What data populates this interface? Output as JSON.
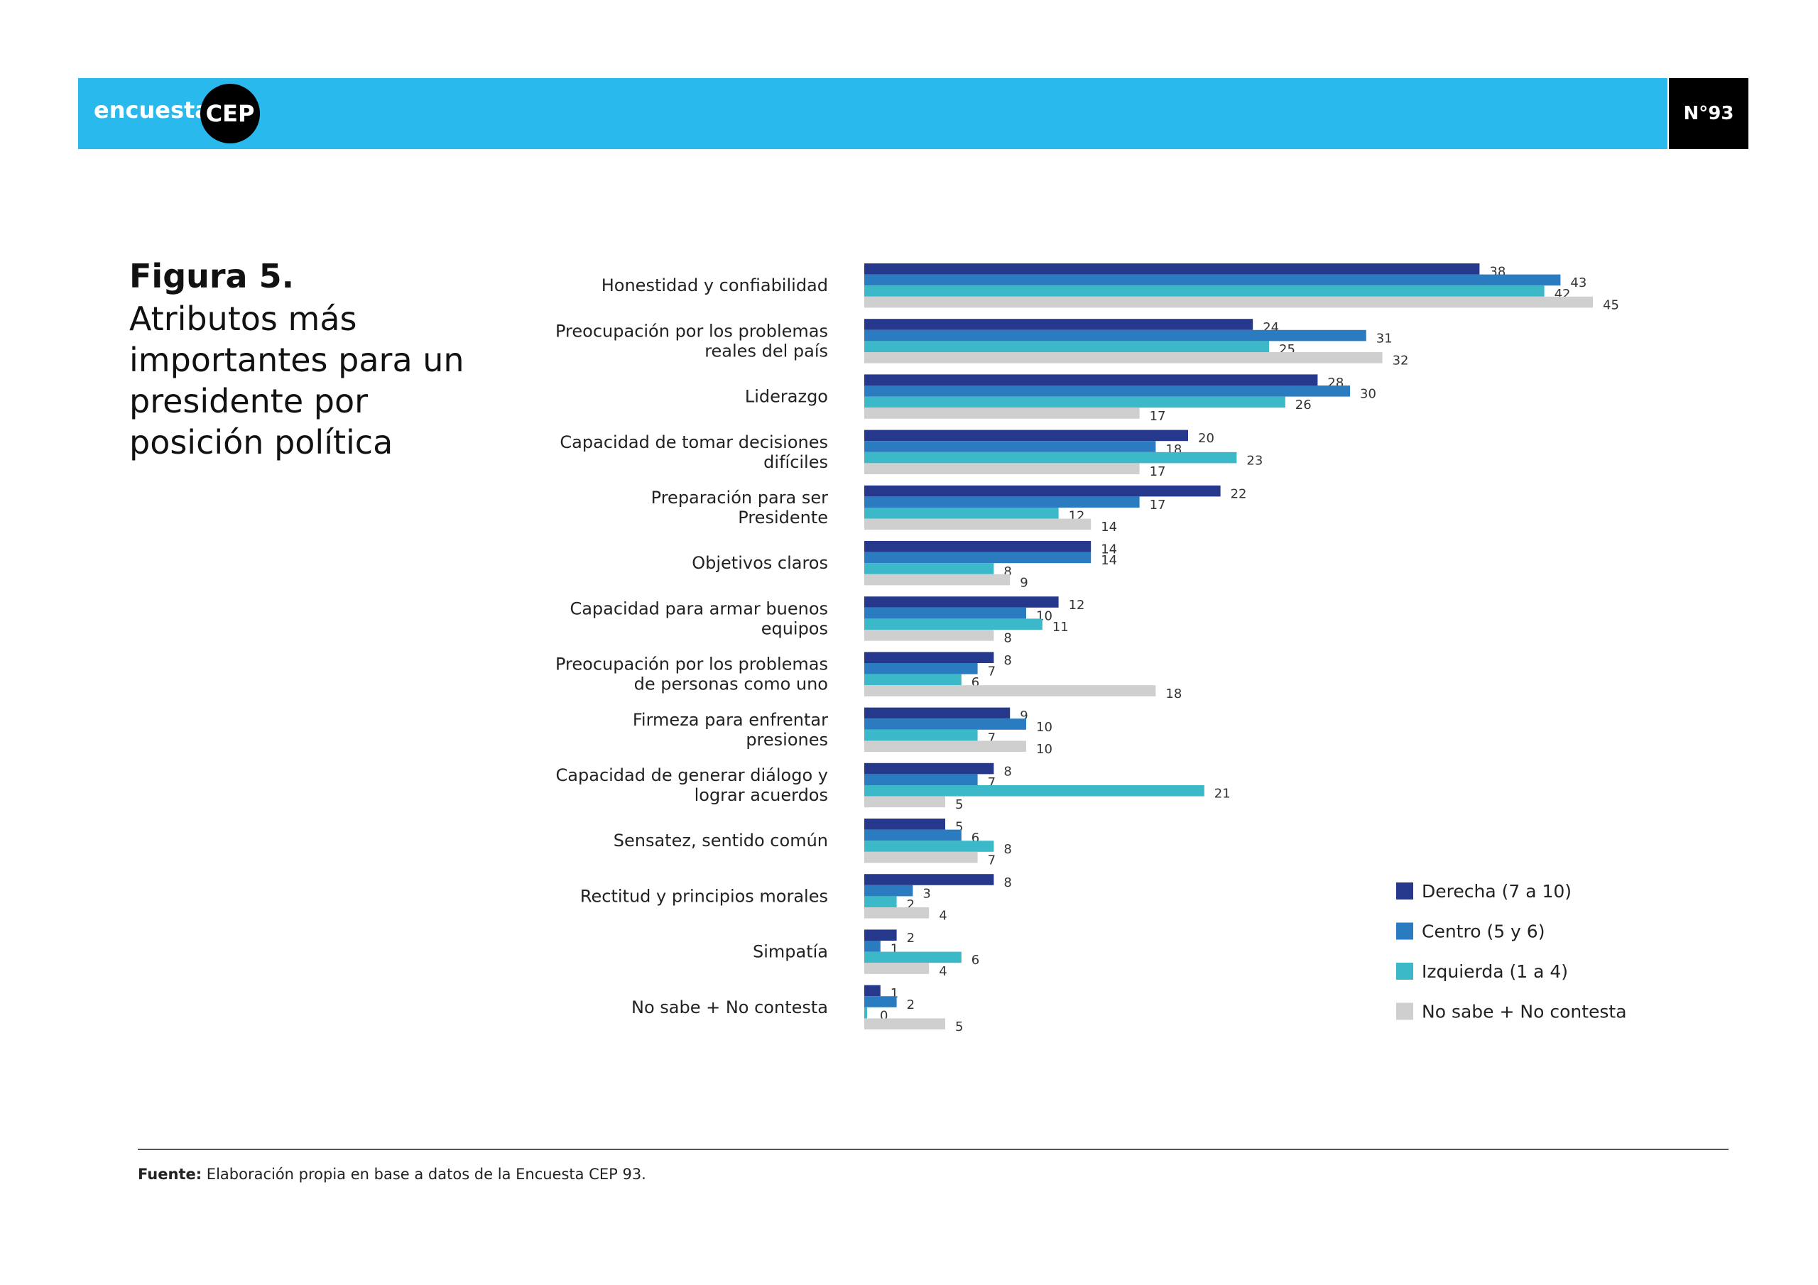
{
  "header": {
    "brand_text": "encuesta",
    "brand_badge": "CEP",
    "issue": "N°93",
    "banner_color": "#29b9ec"
  },
  "figure": {
    "title": "Figura 5.",
    "subtitle": "Atributos más importantes para un presidente por posición política"
  },
  "chart_data": {
    "type": "bar",
    "orientation": "horizontal",
    "categories": [
      [
        "Honestidad y confiabilidad"
      ],
      [
        "Preocupación por los problemas",
        "reales del país"
      ],
      [
        "Liderazgo"
      ],
      [
        "Capacidad de tomar decisiones",
        "difíciles"
      ],
      [
        "Preparación para ser",
        "Presidente"
      ],
      [
        "Objetivos claros"
      ],
      [
        "Capacidad para armar buenos",
        "equipos"
      ],
      [
        "Preocupación por los problemas",
        "de personas como uno"
      ],
      [
        "Firmeza para enfrentar",
        "presiones"
      ],
      [
        "Capacidad de generar diálogo y",
        "lograr acuerdos"
      ],
      [
        "Sensatez, sentido común"
      ],
      [
        "Rectitud y principios morales"
      ],
      [
        "Simpatía"
      ],
      [
        "No sabe + No contesta"
      ]
    ],
    "series": [
      {
        "name": "Derecha (7 a 10)",
        "color": "#26388c",
        "values": [
          38,
          24,
          28,
          20,
          22,
          14,
          12,
          8,
          9,
          8,
          5,
          8,
          2,
          1
        ]
      },
      {
        "name": "Centro (5 y 6)",
        "color": "#2a7bbf",
        "values": [
          43,
          31,
          30,
          18,
          17,
          14,
          10,
          7,
          10,
          7,
          6,
          3,
          1,
          2
        ]
      },
      {
        "name": "Izquierda (1 a 4)",
        "color": "#3bb9c8",
        "values": [
          42,
          25,
          26,
          23,
          12,
          8,
          11,
          6,
          7,
          21,
          8,
          2,
          6,
          0
        ]
      },
      {
        "name": "No sabe + No contesta",
        "color": "#cfcfcf",
        "values": [
          45,
          32,
          17,
          17,
          14,
          9,
          8,
          18,
          10,
          5,
          7,
          4,
          4,
          5
        ]
      }
    ],
    "xlim": [
      0,
      45
    ],
    "grid": false,
    "legend_position": "bottom-right",
    "data_labels": true
  },
  "footer": {
    "source_label": "Fuente:",
    "source_text": " Elaboración propia en base a datos de la Encuesta CEP 93."
  }
}
